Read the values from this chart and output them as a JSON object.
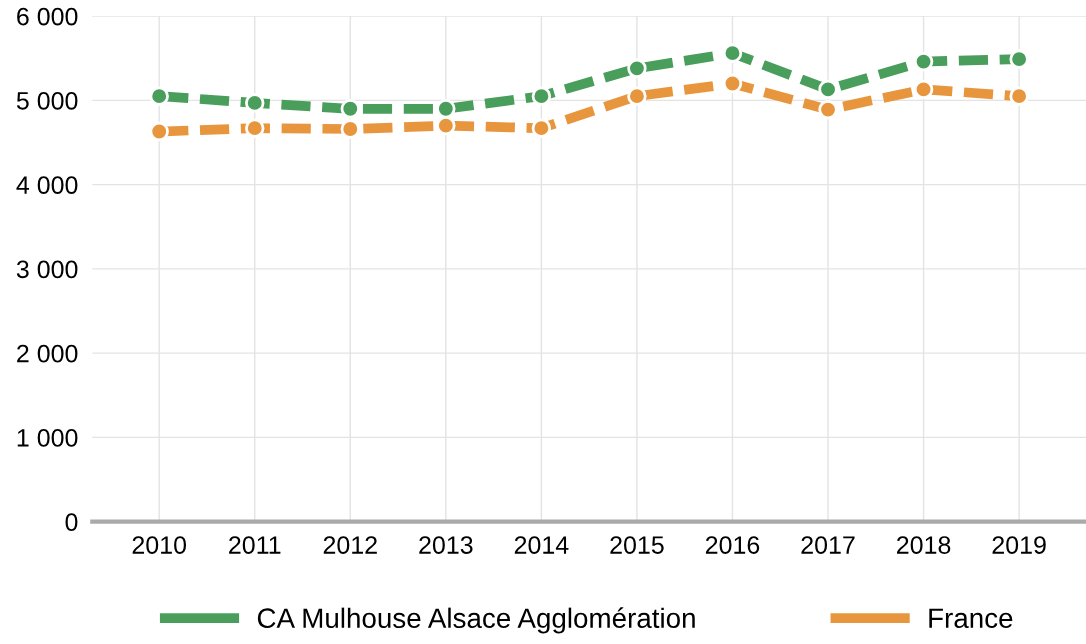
{
  "chart_data": {
    "type": "line",
    "categories": [
      "2010",
      "2011",
      "2012",
      "2013",
      "2014",
      "2015",
      "2016",
      "2017",
      "2018",
      "2019"
    ],
    "series": [
      {
        "name": "CA Mulhouse Alsace Agglomération",
        "color": "#4a9e5c",
        "values": [
          5050,
          4970,
          4900,
          4900,
          5050,
          5380,
          5560,
          5130,
          5460,
          5490
        ]
      },
      {
        "name": "France",
        "color": "#e8963e",
        "values": [
          4630,
          4670,
          4660,
          4700,
          4670,
          5050,
          5200,
          4890,
          5130,
          5050
        ]
      }
    ],
    "ylim": [
      0,
      6000
    ],
    "yticks": [
      0,
      {
        "value": 1000,
        "label": "1 000"
      },
      {
        "value": 2000,
        "label": "2 000"
      },
      {
        "value": 3000,
        "label": "3 000"
      },
      {
        "value": 4000,
        "label": "4 000"
      },
      {
        "value": 5000,
        "label": "5 000"
      },
      {
        "value": 6000,
        "label": "6 000"
      }
    ],
    "grid": true,
    "legend": "bottom",
    "marker": "circle",
    "line_style": "dashed"
  }
}
